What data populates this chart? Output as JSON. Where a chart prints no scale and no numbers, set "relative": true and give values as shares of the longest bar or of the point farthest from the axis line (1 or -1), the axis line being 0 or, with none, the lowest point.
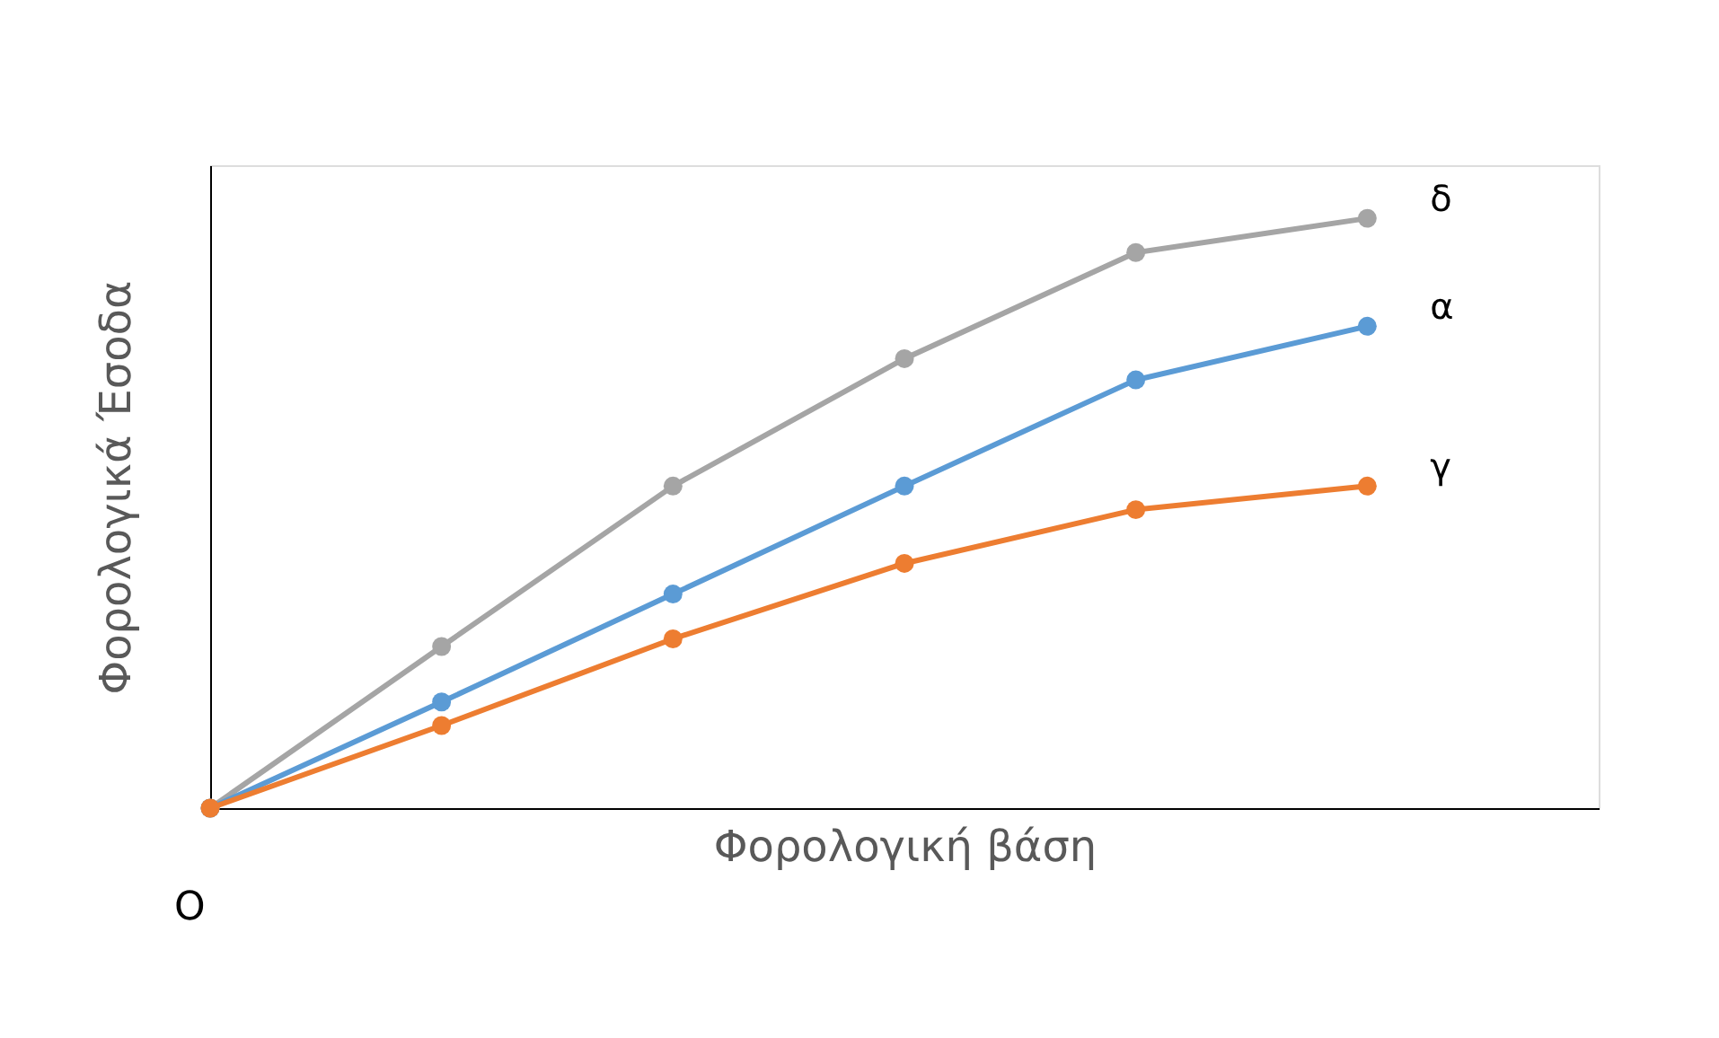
{
  "chart_data": {
    "type": "line",
    "relative": true,
    "xlabel": "Φορολογική βάση",
    "ylabel": "Φορολογικά Έσοδα",
    "categories": [
      null,
      null,
      null,
      null,
      null,
      null
    ],
    "series": [
      {
        "name": "δ",
        "color": "#a5a5a5",
        "values": [
          0,
          0.274,
          0.546,
          0.762,
          0.942,
          1
        ]
      },
      {
        "name": "α",
        "color": "#5b9bd5",
        "values": [
          0,
          0.18,
          0.363,
          0.546,
          0.726,
          0.817
        ]
      },
      {
        "name": "γ",
        "color": "#ed7d31",
        "values": [
          0,
          0.14,
          0.287,
          0.415,
          0.506,
          0.546
        ]
      }
    ],
    "annotations": [
      "O"
    ],
    "marker": "circle",
    "line_style": "solid",
    "grid": false,
    "legend": false,
    "tick_labels": false
  }
}
